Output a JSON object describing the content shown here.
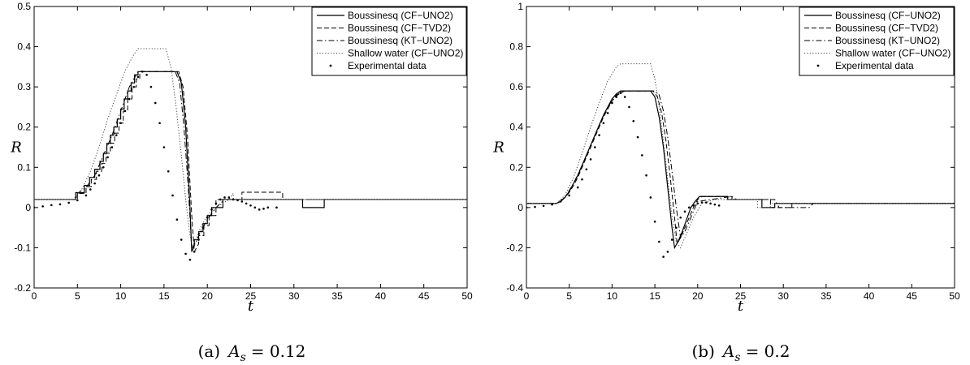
{
  "chart_data": [
    {
      "type": "line",
      "caption": "(a) A_s = 0.12",
      "caption_prefix": "(a)",
      "caption_var": "A",
      "caption_sub": "s",
      "caption_value": "= 0.12",
      "xlabel": "t",
      "ylabel": "R",
      "xlim": [
        0,
        50
      ],
      "ylim": [
        -0.2,
        0.5
      ],
      "xticks": [
        0,
        5,
        10,
        15,
        20,
        25,
        30,
        35,
        40,
        45,
        50
      ],
      "yticks": [
        -0.2,
        -0.1,
        0,
        0.1,
        0.2,
        0.3,
        0.4,
        0.5
      ],
      "xtick_labels": [
        "0",
        "5",
        "10",
        "15",
        "20",
        "25",
        "30",
        "35",
        "40",
        "45",
        "50"
      ],
      "ytick_labels": [
        "-0.2",
        "-0.1",
        "0",
        "0.1",
        "0.2",
        "0.3",
        "0.4",
        "0.5"
      ],
      "legend_position": "top-right",
      "series": [
        {
          "name": "Boussinesq (CF−UNO2)",
          "style": "solid",
          "x": [
            0,
            4.8,
            4.8,
            5.8,
            5.8,
            6.4,
            6.4,
            7.0,
            7.0,
            7.6,
            7.6,
            8.0,
            8.0,
            8.4,
            8.4,
            8.8,
            8.8,
            9.2,
            9.2,
            9.6,
            9.6,
            10.0,
            10.0,
            10.4,
            10.4,
            10.8,
            10.8,
            11.2,
            11.2,
            11.6,
            11.6,
            12.0,
            12.0,
            16.5,
            17.0,
            17.5,
            18.0,
            18.2,
            18.5,
            18.5,
            19.0,
            19.0,
            19.5,
            19.5,
            20.0,
            20.0,
            20.5,
            20.5,
            21.8,
            21.8,
            31.0,
            31.0,
            33.5,
            33.5,
            50
          ],
          "y": [
            0.02,
            0.02,
            0.037,
            0.037,
            0.055,
            0.055,
            0.075,
            0.075,
            0.095,
            0.095,
            0.115,
            0.115,
            0.135,
            0.135,
            0.16,
            0.16,
            0.18,
            0.18,
            0.2,
            0.2,
            0.22,
            0.22,
            0.245,
            0.245,
            0.27,
            0.27,
            0.29,
            0.29,
            0.31,
            0.31,
            0.33,
            0.33,
            0.338,
            0.338,
            0.31,
            0.2,
            0.0,
            -0.11,
            -0.095,
            -0.08,
            -0.08,
            -0.06,
            -0.06,
            -0.04,
            -0.04,
            -0.02,
            -0.02,
            0.0,
            0.0,
            0.02,
            0.02,
            0.0,
            0.0,
            0.02,
            0.02
          ]
        },
        {
          "name": "Boussinesq (CF−TVD2)",
          "style": "dashed",
          "x": [
            0,
            5.0,
            5.0,
            6.0,
            6.0,
            6.6,
            6.6,
            7.2,
            7.2,
            7.8,
            7.8,
            8.3,
            8.3,
            8.8,
            8.8,
            9.3,
            9.3,
            9.8,
            9.8,
            10.3,
            10.3,
            10.8,
            10.8,
            11.3,
            11.3,
            11.8,
            11.8,
            12.2,
            12.2,
            16.7,
            17.2,
            17.7,
            18.2,
            18.5,
            19.0,
            19.0,
            19.6,
            19.6,
            20.2,
            20.2,
            21.0,
            21.0,
            24.0,
            24.0,
            28.7,
            28.7,
            50
          ],
          "y": [
            0.02,
            0.02,
            0.035,
            0.035,
            0.052,
            0.052,
            0.07,
            0.07,
            0.09,
            0.09,
            0.11,
            0.11,
            0.135,
            0.135,
            0.16,
            0.16,
            0.185,
            0.185,
            0.21,
            0.21,
            0.24,
            0.24,
            0.27,
            0.27,
            0.3,
            0.3,
            0.32,
            0.32,
            0.338,
            0.338,
            0.3,
            0.18,
            -0.02,
            -0.11,
            -0.09,
            -0.07,
            -0.07,
            -0.045,
            -0.045,
            -0.02,
            -0.02,
            0.02,
            0.02,
            0.038,
            0.038,
            0.02,
            0.02
          ]
        },
        {
          "name": "Boussinesq (KT−UNO2)",
          "style": "dashdot",
          "x": [
            0,
            4.8,
            5.0,
            6.0,
            7.0,
            8.0,
            9.0,
            10.0,
            11.0,
            12.0,
            16.3,
            16.8,
            17.3,
            17.8,
            18.2,
            18.6,
            19.2,
            20.0,
            21.0,
            22.0,
            50
          ],
          "y": [
            0.02,
            0.02,
            0.035,
            0.05,
            0.08,
            0.13,
            0.18,
            0.24,
            0.3,
            0.338,
            0.338,
            0.31,
            0.2,
            0.05,
            -0.1,
            -0.09,
            -0.06,
            -0.03,
            0.0,
            0.02,
            0.02
          ]
        },
        {
          "name": "Shallow water (CF−UNO2)",
          "style": "dotted",
          "x": [
            0,
            4.5,
            5.5,
            6.5,
            7.5,
            8.5,
            9.5,
            10.5,
            11.5,
            12.0,
            15.2,
            15.8,
            16.4,
            17.0,
            17.5,
            18.0,
            18.3,
            18.7,
            19.2,
            20.0,
            21.0,
            22.5,
            23.0,
            23.0,
            25.0,
            26.0,
            50
          ],
          "y": [
            0.02,
            0.02,
            0.045,
            0.09,
            0.15,
            0.22,
            0.28,
            0.34,
            0.38,
            0.395,
            0.395,
            0.35,
            0.25,
            0.13,
            0.02,
            -0.07,
            -0.1,
            -0.08,
            -0.05,
            -0.02,
            0.0,
            0.02,
            0.035,
            0.02,
            0.02,
            0.02,
            0.02
          ]
        },
        {
          "name": "Experimental data",
          "style": "points",
          "x": [
            0,
            1,
            2,
            3,
            4,
            5,
            6,
            6.5,
            7,
            7.5,
            8,
            8.5,
            9,
            9.5,
            10,
            10.5,
            11,
            11.5,
            12,
            12.5,
            13,
            13.5,
            14,
            14.5,
            15,
            15.5,
            16,
            16.5,
            17,
            17.5,
            18,
            18.5,
            19,
            19.5,
            20,
            20.5,
            21,
            21.5,
            22,
            22.5,
            23,
            23.5,
            24,
            24.5,
            25,
            25.5,
            26,
            26.5,
            27,
            28
          ],
          "y": [
            0.0,
            0.003,
            0.006,
            0.008,
            0.012,
            0.018,
            0.03,
            0.045,
            0.06,
            0.08,
            0.1,
            0.125,
            0.15,
            0.18,
            0.21,
            0.24,
            0.27,
            0.3,
            0.325,
            0.338,
            0.33,
            0.3,
            0.26,
            0.21,
            0.15,
            0.09,
            0.03,
            -0.03,
            -0.08,
            -0.115,
            -0.13,
            -0.11,
            -0.08,
            -0.05,
            -0.025,
            -0.005,
            0.01,
            0.02,
            0.025,
            0.025,
            0.02,
            0.018,
            0.015,
            0.01,
            0.005,
            0.0,
            -0.005,
            -0.003,
            0.0,
            0.0
          ]
        }
      ]
    },
    {
      "type": "line",
      "caption": "(b) A_s = 0.2",
      "caption_prefix": "(b)",
      "caption_var": "A",
      "caption_sub": "s",
      "caption_value": "= 0.2",
      "xlabel": "t",
      "ylabel": "R",
      "xlim": [
        0,
        50
      ],
      "ylim": [
        -0.4,
        1.0
      ],
      "xticks": [
        0,
        5,
        10,
        15,
        20,
        25,
        30,
        35,
        40,
        45,
        50
      ],
      "yticks": [
        -0.4,
        -0.2,
        0,
        0.2,
        0.4,
        0.6,
        0.8,
        1.0
      ],
      "xtick_labels": [
        "0",
        "5",
        "10",
        "15",
        "20",
        "25",
        "30",
        "35",
        "40",
        "45",
        "50"
      ],
      "ytick_labels": [
        "-0.4",
        "-0.2",
        "0",
        "0.2",
        "0.4",
        "0.6",
        "0.8",
        "1"
      ],
      "legend_position": "top-right",
      "series": [
        {
          "name": "Boussinesq (CF−UNO2)",
          "style": "solid",
          "x": [
            0,
            3.5,
            4.0,
            4.5,
            5.0,
            5.5,
            6.0,
            6.5,
            7.0,
            7.5,
            8.0,
            8.5,
            9.0,
            9.5,
            10.0,
            10.5,
            11.0,
            14.5,
            15.0,
            15.5,
            16.0,
            16.5,
            17.0,
            17.3,
            17.7,
            18.2,
            18.7,
            19.2,
            19.7,
            20.2,
            23.5,
            23.5,
            27.5,
            27.5,
            29.0,
            29.0,
            50
          ],
          "y": [
            0.02,
            0.02,
            0.03,
            0.05,
            0.08,
            0.12,
            0.16,
            0.21,
            0.26,
            0.31,
            0.36,
            0.41,
            0.46,
            0.5,
            0.54,
            0.565,
            0.58,
            0.58,
            0.55,
            0.45,
            0.3,
            0.1,
            -0.1,
            -0.2,
            -0.17,
            -0.12,
            -0.06,
            0.0,
            0.03,
            0.055,
            0.055,
            0.04,
            0.04,
            0.0,
            0.0,
            0.02,
            0.02
          ]
        },
        {
          "name": "Boussinesq (CF−TVD2)",
          "style": "dashed",
          "x": [
            0,
            3.5,
            4.0,
            4.5,
            5.0,
            5.5,
            6.0,
            6.5,
            7.0,
            7.5,
            8.0,
            8.5,
            9.0,
            9.5,
            10.0,
            10.5,
            11.0,
            11.5,
            14.8,
            15.3,
            15.8,
            16.3,
            16.8,
            17.3,
            17.6,
            18.0,
            18.5,
            19.0,
            19.5,
            20.0,
            20.5,
            24.0,
            24.0,
            28.5,
            28.5,
            31.0,
            31.0,
            50
          ],
          "y": [
            0.02,
            0.02,
            0.03,
            0.05,
            0.075,
            0.11,
            0.15,
            0.2,
            0.25,
            0.3,
            0.35,
            0.4,
            0.45,
            0.49,
            0.53,
            0.555,
            0.57,
            0.58,
            0.58,
            0.55,
            0.47,
            0.33,
            0.15,
            -0.05,
            -0.18,
            -0.15,
            -0.1,
            -0.05,
            0.0,
            0.04,
            0.055,
            0.055,
            0.04,
            0.04,
            0.0,
            0.0,
            0.02,
            0.02
          ]
        },
        {
          "name": "Boussinesq (KT−UNO2)",
          "style": "dashdot",
          "x": [
            0,
            3.5,
            4.5,
            5.5,
            6.5,
            7.5,
            8.5,
            9.5,
            10.5,
            11.5,
            15.0,
            15.5,
            16.0,
            16.5,
            17.0,
            17.5,
            18.0,
            18.5,
            19.2,
            20.0,
            24.0,
            24.5,
            29.0,
            29.5,
            33.0,
            33.5,
            50
          ],
          "y": [
            0.02,
            0.02,
            0.05,
            0.12,
            0.21,
            0.31,
            0.41,
            0.5,
            0.56,
            0.58,
            0.58,
            0.56,
            0.48,
            0.35,
            0.18,
            0.0,
            -0.15,
            -0.12,
            -0.05,
            0.03,
            0.055,
            0.04,
            0.04,
            0.0,
            0.0,
            0.02,
            0.02
          ]
        },
        {
          "name": "Shallow water (CF−UNO2)",
          "style": "dotted",
          "x": [
            0,
            3.5,
            4.5,
            5.5,
            6.5,
            7.5,
            8.5,
            9.5,
            10.5,
            11.0,
            14.5,
            15.0,
            15.5,
            16.0,
            16.5,
            17.0,
            17.5,
            18.0,
            18.5,
            19.5,
            20.5,
            22.0,
            27.0,
            27.0,
            28.5,
            28.5,
            50
          ],
          "y": [
            0.02,
            0.02,
            0.06,
            0.15,
            0.27,
            0.4,
            0.52,
            0.63,
            0.7,
            0.715,
            0.715,
            0.64,
            0.5,
            0.33,
            0.14,
            -0.04,
            -0.17,
            -0.2,
            -0.15,
            -0.05,
            0.02,
            0.04,
            0.04,
            0.0,
            0.0,
            0.02,
            0.02
          ]
        },
        {
          "name": "Experimental data",
          "style": "points",
          "x": [
            0,
            1,
            2,
            3,
            4,
            5,
            6,
            6.5,
            7,
            7.5,
            8,
            8.5,
            9,
            9.5,
            10,
            10.5,
            11,
            11.5,
            12,
            12.5,
            13,
            13.5,
            14,
            14.5,
            15,
            15.5,
            16,
            16.5,
            17,
            17.5,
            18,
            18.5,
            19,
            19.5,
            20,
            20.5,
            21,
            21.5,
            22,
            22.5
          ],
          "y": [
            0.0,
            0.003,
            0.008,
            0.015,
            0.03,
            0.06,
            0.1,
            0.14,
            0.19,
            0.24,
            0.3,
            0.36,
            0.42,
            0.47,
            0.52,
            0.55,
            0.57,
            0.55,
            0.5,
            0.43,
            0.35,
            0.26,
            0.16,
            0.05,
            -0.07,
            -0.17,
            -0.245,
            -0.22,
            -0.16,
            -0.1,
            -0.05,
            -0.02,
            0.0,
            0.01,
            0.02,
            0.025,
            0.025,
            0.02,
            0.015,
            0.01
          ]
        }
      ]
    }
  ]
}
